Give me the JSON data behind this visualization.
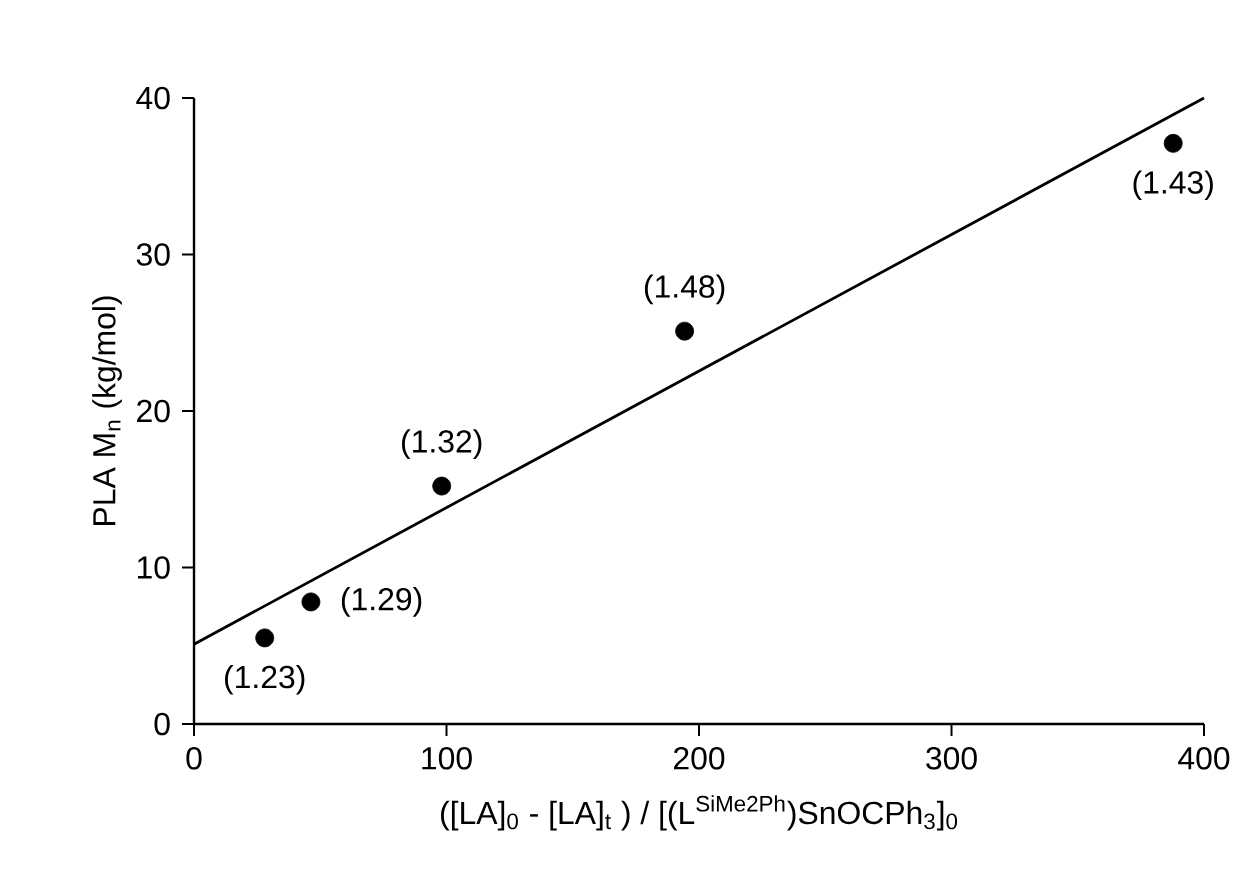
{
  "chart_data": {
    "type": "scatter",
    "xlabel": "([LA]$_{0}$ - [LA]$_{t}$ ) / [(L$^{SiMe2Ph}$)SnOCPh$_{3}$]$_{0}$",
    "ylabel": "PLA M$_{n}$ (kg/mol)",
    "x": [
      28.0,
      46.3,
      98.1,
      194.3,
      387.8
    ],
    "series": [
      {
        "color": "#000000",
        "marker": "circle",
        "values": [
          5.5,
          7.8,
          15.2,
          25.1,
          37.1
        ]
      },
      {
        "type": "line",
        "color": "#000000",
        "line_style": "solid",
        "marker": "none",
        "x": [
          0,
          400
        ],
        "values": [
          5.1,
          40
        ]
      }
    ],
    "annotations": [
      {
        "text": "(1.23)",
        "x": 28.0,
        "y": 5.5
      },
      {
        "text": "(1.29)",
        "x": 46.3,
        "y": 7.8
      },
      {
        "text": "(1.32)",
        "x": 98.1,
        "y": 15.2
      },
      {
        "text": "(1.48)",
        "x": 194.3,
        "y": 25.1
      },
      {
        "text": "(1.43)",
        "x": 387.8,
        "y": 37.1
      }
    ],
    "xlim": [
      0,
      400
    ],
    "ylim": [
      0,
      40
    ],
    "xticks": [
      0,
      100,
      200,
      300,
      400
    ],
    "yticks": [
      0,
      10,
      20,
      30,
      40
    ],
    "grid": false
  }
}
